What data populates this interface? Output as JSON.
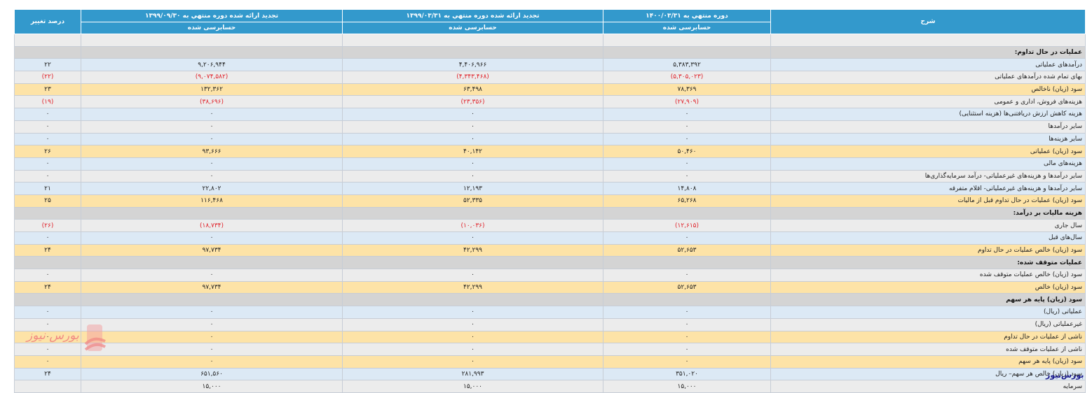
{
  "header": {
    "col_desc": "شرح",
    "col_1400": "دوره منتهي به ۱۴۰۰/۰۳/۳۱",
    "col_1399_03": "تجدید ارائه شده دوره منتهي به ۱۳۹۹/۰۳/۳۱",
    "col_1399_09": "تجدید ارائه شده دوره منتهي به ۱۳۹۹/۰۹/۳۰",
    "col_change": "درصد تغییر",
    "audit_1400": "حسابرسی شده",
    "audit_1399_03": "حسابرسی شده",
    "audit_1399_09": "حسابرسی شده"
  },
  "rows": [
    {
      "kind": "grey",
      "desc": "",
      "v1": "",
      "v2": "",
      "v3": "",
      "change": ""
    },
    {
      "kind": "section",
      "desc": "عملیات در حال تداوم:",
      "v1": "",
      "v2": "",
      "v3": "",
      "change": ""
    },
    {
      "kind": "blue",
      "desc": "درآمدهای عملیاتی",
      "v1": "۵,۳۸۳,۳۹۲",
      "v2": "۴,۴۰۶,۹۶۶",
      "v3": "۹,۲۰۶,۹۴۴",
      "change": "۲۲",
      "neg": false
    },
    {
      "kind": "grey",
      "desc": "بهای تمام شده درآمدهای عملیاتی",
      "v1": "(۵,۳۰۵,۰۲۳)",
      "v2": "(۴,۳۴۳,۴۶۸)",
      "v3": "(۹,۰۷۴,۵۸۲)",
      "change": "(۲۲)",
      "neg": true
    },
    {
      "kind": "yellow",
      "desc": "سود (زیان) ناخالص",
      "v1": "۷۸,۳۶۹",
      "v2": "۶۳,۴۹۸",
      "v3": "۱۳۲,۳۶۲",
      "change": "۲۳",
      "neg": false
    },
    {
      "kind": "grey",
      "desc": "هزینه‌های فروش، اداری و عمومی",
      "v1": "(۲۷,۹۰۹)",
      "v2": "(۲۳,۳۵۶)",
      "v3": "(۳۸,۶۹۶)",
      "change": "(۱۹)",
      "neg": true
    },
    {
      "kind": "blue",
      "desc": "هزینه کاهش ارزش دریافتنی‌ها (هزینه استثنایی)",
      "v1": "۰",
      "v2": "۰",
      "v3": "۰",
      "change": "۰",
      "neg": false
    },
    {
      "kind": "grey",
      "desc": "سایر درآمدها",
      "v1": "۰",
      "v2": "۰",
      "v3": "۰",
      "change": "۰",
      "neg": false
    },
    {
      "kind": "blue",
      "desc": "سایر هزینه‌ها",
      "v1": "۰",
      "v2": "۰",
      "v3": "۰",
      "change": "۰",
      "neg": false
    },
    {
      "kind": "yellow",
      "desc": "سود (زیان) عملیاتی",
      "v1": "۵۰,۴۶۰",
      "v2": "۴۰,۱۴۲",
      "v3": "۹۳,۶۶۶",
      "change": "۲۶",
      "neg": false
    },
    {
      "kind": "blue",
      "desc": "هزینه‌های مالی",
      "v1": "۰",
      "v2": "۰",
      "v3": "۰",
      "change": "۰",
      "neg": false
    },
    {
      "kind": "grey",
      "desc": "سایر درآمدها و هزینه‌های غیرعملیاتی- درآمد سرمایه‌گذاری‌ها",
      "v1": "۰",
      "v2": "۰",
      "v3": "۰",
      "change": "۰",
      "neg": false
    },
    {
      "kind": "blue",
      "desc": "سایر درآمدها و هزینه‌های غیرعملیاتی- اقلام متفرقه",
      "v1": "۱۴,۸۰۸",
      "v2": "۱۲,۱۹۳",
      "v3": "۲۲,۸۰۲",
      "change": "۲۱",
      "neg": false
    },
    {
      "kind": "yellow",
      "desc": "سود (زیان) عملیات در حال تداوم قبل از مالیات",
      "v1": "۶۵,۲۶۸",
      "v2": "۵۲,۳۳۵",
      "v3": "۱۱۶,۴۶۸",
      "change": "۲۵",
      "neg": false
    },
    {
      "kind": "section",
      "desc": "هزینه مالیات بر درآمد:",
      "v1": "",
      "v2": "",
      "v3": "",
      "change": ""
    },
    {
      "kind": "grey",
      "desc": "سال جاری",
      "v1": "(۱۲,۶۱۵)",
      "v2": "(۱۰,۰۳۶)",
      "v3": "(۱۸,۷۳۴)",
      "change": "(۲۶)",
      "neg": true
    },
    {
      "kind": "blue",
      "desc": "سال‌های قبل",
      "v1": "۰",
      "v2": "۰",
      "v3": "۰",
      "change": "۰",
      "neg": false
    },
    {
      "kind": "yellow",
      "desc": "سود (زیان) خالص عملیات در حال تداوم",
      "v1": "۵۲,۶۵۳",
      "v2": "۴۲,۲۹۹",
      "v3": "۹۷,۷۳۴",
      "change": "۲۴",
      "neg": false
    },
    {
      "kind": "section",
      "desc": "عملیات متوقف شده:",
      "v1": "",
      "v2": "",
      "v3": "",
      "change": ""
    },
    {
      "kind": "grey",
      "desc": "سود (زیان) خالص عملیات متوقف شده",
      "v1": "۰",
      "v2": "۰",
      "v3": "۰",
      "change": "۰",
      "neg": false
    },
    {
      "kind": "yellow",
      "desc": "سود (زیان) خالص",
      "v1": "۵۲,۶۵۳",
      "v2": "۴۲,۲۹۹",
      "v3": "۹۷,۷۳۴",
      "change": "۲۴",
      "neg": false
    },
    {
      "kind": "section",
      "desc": "سود (زیان) پایه هر سهم",
      "v1": "",
      "v2": "",
      "v3": "",
      "change": ""
    },
    {
      "kind": "blue",
      "desc": "عملیاتی (ریال)",
      "v1": "۰",
      "v2": "۰",
      "v3": "۰",
      "change": "۰",
      "neg": false
    },
    {
      "kind": "grey",
      "desc": "غیرعملیاتی (ریال)",
      "v1": "۰",
      "v2": "۰",
      "v3": "۰",
      "change": "۰",
      "neg": false
    },
    {
      "kind": "yellow",
      "desc": "ناشی از عملیات در حال تداوم",
      "v1": "۰",
      "v2": "۰",
      "v3": "۰",
      "change": "۰",
      "neg": false
    },
    {
      "kind": "grey",
      "desc": "ناشی از عملیات متوقف شده",
      "v1": "۰",
      "v2": "۰",
      "v3": "۰",
      "change": "۰",
      "neg": false
    },
    {
      "kind": "yellow",
      "desc": "سود (زیان) پایه هر سهم",
      "v1": "۰",
      "v2": "۰",
      "v3": "۰",
      "change": "۰",
      "neg": false
    },
    {
      "kind": "blue",
      "desc": "سود (زیان) خالص هر سهم– ریال",
      "v1": "۳۵۱,۰۲۰",
      "v2": "۲۸۱,۹۹۳",
      "v3": "۶۵۱,۵۶۰",
      "change": "۲۴",
      "neg": false
    },
    {
      "kind": "grey",
      "desc": "سرمایه",
      "v1": "۱۵,۰۰۰",
      "v2": "۱۵,۰۰۰",
      "v3": "۱۵,۰۰۰",
      "change": "",
      "neg": false
    }
  ],
  "watermark": {
    "text": "بورس نیوز",
    "color": "#f07e7e"
  },
  "corner_logo": {
    "text": "بورس‌نیوز"
  },
  "colors": {
    "header": "#3399cc",
    "blue_row": "#dce9f5",
    "grey_row": "#ececec",
    "yellow_row": "#fde3a7",
    "section_row": "#d4d4d4",
    "negative": "#e0222a"
  }
}
